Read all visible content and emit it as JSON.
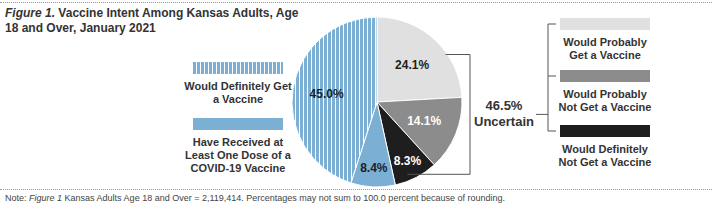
{
  "chart_data": {
    "type": "pie",
    "figure_label": "Figure 1.",
    "title": "Vaccine Intent Among Kansas Adults, Age 18 and Over, January 2021",
    "categories": [
      "Would Probably Get a Vaccine",
      "Would Probably Not Get a Vaccine",
      "Would Definitely Not Get a Vaccine",
      "Have Received at Least One Dose of a COVID-19 Vaccine",
      "Would Definitely Get a Vaccine"
    ],
    "values": [
      24.1,
      14.1,
      8.3,
      8.4,
      45.0
    ],
    "value_labels": [
      "24.1%",
      "14.1%",
      "8.3%",
      "8.4%",
      "45.0%"
    ],
    "colors": [
      "#e0e0e0",
      "#8c8c8c",
      "#1e1e1e",
      "#7bafd4",
      "#7bafd4"
    ],
    "data_labels": true,
    "annotations": [
      {
        "value": 46.5,
        "label": "46.5%",
        "text": "Uncertain"
      }
    ],
    "note": [
      "Note:",
      "Figure 1",
      "Kansas Adults Age 18 and Over = 2,119,414. Percentages may not sum to 100.0 percent because of rounding."
    ]
  }
}
